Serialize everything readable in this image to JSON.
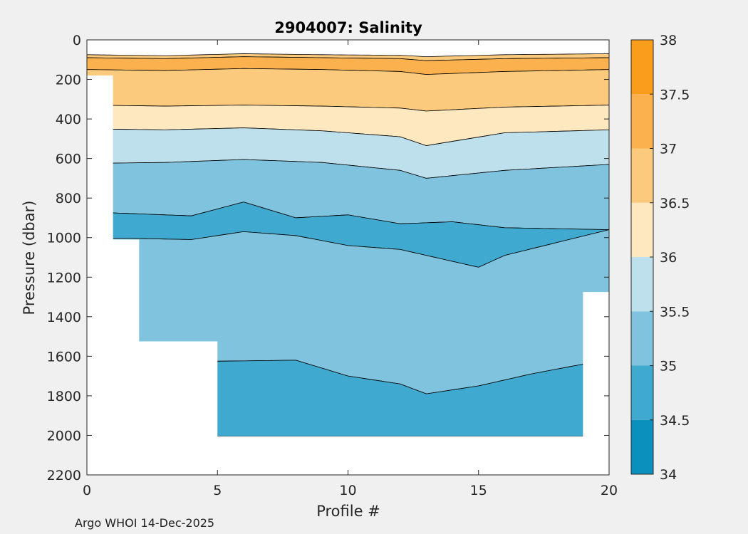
{
  "chart_data": {
    "type": "contourf",
    "title": "2904007:  Salinity",
    "xlabel": "Profile #",
    "ylabel": "Pressure (dbar)",
    "xlim": [
      0,
      20
    ],
    "ylim": [
      2200,
      0
    ],
    "x_ticks": [
      "0",
      "5",
      "10",
      "15",
      "20"
    ],
    "y_ticks": [
      "0",
      "200",
      "400",
      "600",
      "800",
      "1000",
      "1200",
      "1400",
      "1600",
      "1800",
      "2000",
      "2200"
    ],
    "colorbar": {
      "range": [
        34,
        38
      ],
      "ticks": [
        "34",
        "34.5",
        "35",
        "35.5",
        "36",
        "36.5",
        "37",
        "37.5",
        "38"
      ],
      "colors": [
        "#0b8fbd",
        "#40a9cf",
        "#7fc3de",
        "#bee0ec",
        "#fde8c0",
        "#fcca7c",
        "#fbb24e",
        "#fa9c1c"
      ]
    },
    "bottom_depth_by_profile": [
      {
        "profile": 1,
        "pressure": 180
      },
      {
        "profile": 2,
        "pressure": 1010
      },
      {
        "profile": 5,
        "pressure": 1525
      },
      {
        "profile": 19,
        "pressure": 2005
      },
      {
        "profile": 20,
        "pressure": 1275
      }
    ],
    "bands": [
      {
        "range": "36.5-37",
        "top": [
          [
            0,
            0
          ],
          [
            20,
            0
          ]
        ],
        "bottom": [
          [
            0,
            0
          ],
          [
            20,
            0
          ]
        ]
      },
      {
        "range": "36.5-37",
        "top": [
          [
            0,
            75
          ],
          [
            3,
            80
          ],
          [
            6,
            70
          ],
          [
            9,
            75
          ],
          [
            12,
            78
          ],
          [
            13,
            85
          ],
          [
            16,
            75
          ],
          [
            20,
            70
          ]
        ],
        "bottom": [
          [
            0,
            90
          ],
          [
            3,
            95
          ],
          [
            6,
            85
          ],
          [
            9,
            90
          ],
          [
            12,
            95
          ],
          [
            13,
            105
          ],
          [
            16,
            95
          ],
          [
            20,
            90
          ]
        ]
      },
      {
        "range": "37-37.5",
        "top": [
          [
            0,
            90
          ],
          [
            3,
            95
          ],
          [
            6,
            85
          ],
          [
            9,
            90
          ],
          [
            12,
            95
          ],
          [
            13,
            105
          ],
          [
            16,
            95
          ],
          [
            20,
            90
          ]
        ],
        "bottom": [
          [
            0,
            150
          ],
          [
            3,
            155
          ],
          [
            6,
            145
          ],
          [
            9,
            150
          ],
          [
            12,
            160
          ],
          [
            13,
            175
          ],
          [
            16,
            160
          ],
          [
            20,
            150
          ]
        ]
      },
      {
        "range": "36.5-37",
        "top": [
          [
            0,
            150
          ],
          [
            3,
            155
          ],
          [
            6,
            145
          ],
          [
            9,
            150
          ],
          [
            12,
            160
          ],
          [
            13,
            175
          ],
          [
            16,
            160
          ],
          [
            20,
            150
          ]
        ],
        "bottom": [
          [
            0,
            330
          ],
          [
            3,
            335
          ],
          [
            6,
            330
          ],
          [
            9,
            335
          ],
          [
            12,
            345
          ],
          [
            13,
            360
          ],
          [
            16,
            340
          ],
          [
            20,
            330
          ]
        ]
      },
      {
        "range": "36-36.5",
        "top": [
          [
            0,
            330
          ],
          [
            3,
            335
          ],
          [
            6,
            330
          ],
          [
            9,
            335
          ],
          [
            12,
            345
          ],
          [
            13,
            360
          ],
          [
            16,
            340
          ],
          [
            20,
            330
          ]
        ],
        "bottom": [
          [
            0,
            450
          ],
          [
            3,
            455
          ],
          [
            6,
            445
          ],
          [
            9,
            460
          ],
          [
            12,
            490
          ],
          [
            13,
            535
          ],
          [
            16,
            470
          ],
          [
            20,
            455
          ]
        ]
      },
      {
        "range": "35.5-36",
        "top": [
          [
            0,
            450
          ],
          [
            3,
            455
          ],
          [
            6,
            445
          ],
          [
            9,
            460
          ],
          [
            12,
            490
          ],
          [
            13,
            535
          ],
          [
            16,
            470
          ],
          [
            20,
            455
          ]
        ],
        "bottom": [
          [
            0,
            625
          ],
          [
            3,
            620
          ],
          [
            6,
            605
          ],
          [
            9,
            620
          ],
          [
            12,
            660
          ],
          [
            13,
            700
          ],
          [
            16,
            660
          ],
          [
            20,
            630
          ]
        ]
      },
      {
        "range": "35-35.5",
        "top": [
          [
            0,
            625
          ],
          [
            3,
            620
          ],
          [
            6,
            605
          ],
          [
            9,
            620
          ],
          [
            12,
            660
          ],
          [
            13,
            700
          ],
          [
            16,
            660
          ],
          [
            20,
            630
          ]
        ],
        "bottom": [
          [
            0,
            870
          ],
          [
            4,
            890
          ],
          [
            6,
            820
          ],
          [
            8,
            900
          ],
          [
            10,
            885
          ],
          [
            12,
            930
          ],
          [
            14,
            920
          ],
          [
            16,
            950
          ],
          [
            20,
            960
          ]
        ]
      },
      {
        "range": "34.5-35",
        "top": [
          [
            0,
            870
          ],
          [
            4,
            890
          ],
          [
            6,
            820
          ],
          [
            8,
            900
          ],
          [
            10,
            885
          ],
          [
            12,
            930
          ],
          [
            14,
            920
          ],
          [
            16,
            950
          ],
          [
            20,
            960
          ]
        ],
        "bottom": [
          [
            0,
            1000
          ],
          [
            4,
            1010
          ],
          [
            6,
            970
          ],
          [
            8,
            990
          ],
          [
            10,
            1040
          ],
          [
            12,
            1060
          ],
          [
            14,
            1120
          ],
          [
            15,
            1150
          ],
          [
            16,
            1090
          ],
          [
            20,
            960
          ]
        ]
      },
      {
        "range": "35-35.5",
        "top": [
          [
            0,
            1000
          ],
          [
            4,
            1010
          ],
          [
            6,
            970
          ],
          [
            8,
            990
          ],
          [
            10,
            1040
          ],
          [
            12,
            1060
          ],
          [
            14,
            1120
          ],
          [
            15,
            1150
          ],
          [
            16,
            1090
          ],
          [
            20,
            960
          ]
        ],
        "bottom": [
          [
            0,
            1620
          ],
          [
            5,
            1625
          ],
          [
            8,
            1620
          ],
          [
            10,
            1700
          ],
          [
            12,
            1740
          ],
          [
            13,
            1790
          ],
          [
            14,
            1770
          ],
          [
            15,
            1750
          ],
          [
            17,
            1690
          ],
          [
            19,
            1640
          ],
          [
            20,
            1640
          ]
        ]
      },
      {
        "range": "34.5-35",
        "top": [
          [
            0,
            1620
          ],
          [
            5,
            1625
          ],
          [
            8,
            1620
          ],
          [
            10,
            1700
          ],
          [
            12,
            1740
          ],
          [
            13,
            1790
          ],
          [
            14,
            1770
          ],
          [
            15,
            1750
          ],
          [
            17,
            1690
          ],
          [
            19,
            1640
          ],
          [
            20,
            1640
          ]
        ],
        "bottom": [
          [
            0,
            2005
          ],
          [
            20,
            2005
          ]
        ]
      }
    ]
  },
  "footer": "Argo WHOI 14-Dec-2025"
}
